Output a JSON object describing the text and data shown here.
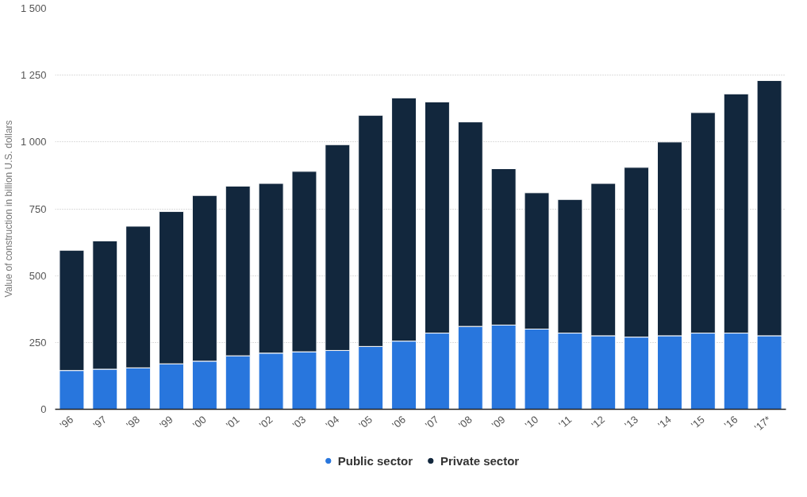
{
  "chart_data": {
    "type": "bar",
    "stacked": true,
    "ylabel": "Value of construction in billion U.S. dollars",
    "categories": [
      "'96",
      "'97",
      "'98",
      "'99",
      "'00",
      "'01",
      "'02",
      "'03",
      "'04",
      "'05",
      "'06",
      "'07",
      "'08",
      "'09",
      "'10",
      "'11",
      "'12",
      "'13",
      "'14",
      "'15",
      "'16",
      "'17*"
    ],
    "series": [
      {
        "name": "Public sector",
        "color": "#2876dd",
        "values": [
          145,
          150,
          155,
          170,
          180,
          200,
          210,
          215,
          220,
          235,
          255,
          285,
          310,
          315,
          300,
          285,
          275,
          270,
          275,
          285,
          285,
          275
        ]
      },
      {
        "name": "Private sector",
        "color": "#12273d",
        "values": [
          450,
          480,
          530,
          570,
          620,
          635,
          635,
          675,
          770,
          865,
          910,
          865,
          765,
          585,
          510,
          500,
          570,
          635,
          725,
          825,
          895,
          955
        ]
      }
    ],
    "ylim": [
      0,
      1500
    ],
    "yticks": [
      {
        "value": 0,
        "label": "0"
      },
      {
        "value": 250,
        "label": "250"
      },
      {
        "value": 500,
        "label": "500"
      },
      {
        "value": 750,
        "label": "750"
      },
      {
        "value": 1000,
        "label": "1 000"
      },
      {
        "value": 1250,
        "label": "1 250"
      },
      {
        "value": 1500,
        "label": "1 500"
      }
    ],
    "grid": "y",
    "legend": "bottom",
    "marker": "circle"
  }
}
